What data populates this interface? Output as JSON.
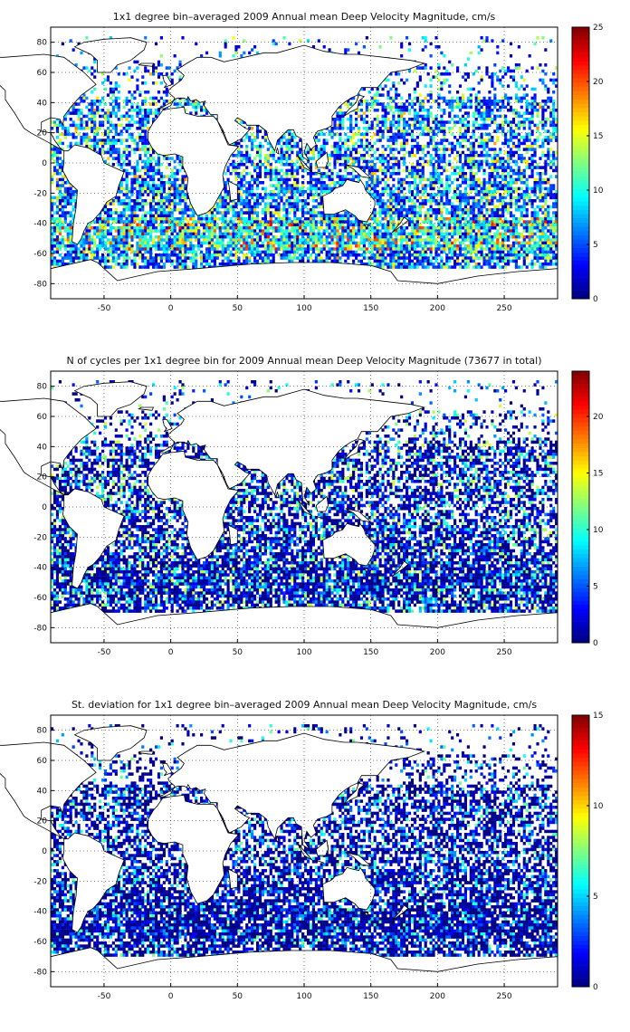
{
  "panels": [
    {
      "title": "1x1 degree bin–averaged 2009 Annual mean Deep Velocity Magnitude, cm/s",
      "colorbar": {
        "min": 0,
        "max": 25,
        "ticks": [
          "0",
          "5",
          "10",
          "15",
          "20",
          "25"
        ]
      },
      "x_ticks": [
        "-50",
        "0",
        "50",
        "100",
        "150",
        "200",
        "250"
      ],
      "y_ticks": [
        "80",
        "60",
        "40",
        "20",
        "0",
        "-20",
        "-40",
        "-60",
        "-80"
      ]
    },
    {
      "title": "N of cycles per 1x1 degree bin for 2009 Annual mean Deep Velocity Magnitude (73677 in total)",
      "colorbar": {
        "min": 0,
        "max": 24,
        "ticks": [
          "0",
          "5",
          "10",
          "15",
          "20"
        ]
      },
      "x_ticks": [
        "-50",
        "0",
        "50",
        "100",
        "150",
        "200",
        "250"
      ],
      "y_ticks": [
        "80",
        "60",
        "40",
        "20",
        "0",
        "-20",
        "-40",
        "-60",
        "-80"
      ]
    },
    {
      "title": "St. deviation for 1x1 degree bin–averaged 2009 Annual mean Deep Velocity Magnitude, cm/s",
      "colorbar": {
        "min": 0,
        "max": 15,
        "ticks": [
          "0",
          "5",
          "10",
          "15"
        ]
      },
      "x_ticks": [
        "-50",
        "0",
        "50",
        "100",
        "150",
        "200",
        "250"
      ],
      "y_ticks": [
        "80",
        "60",
        "40",
        "20",
        "0",
        "-20",
        "-40",
        "-60",
        "-80"
      ]
    }
  ],
  "map": {
    "lon_range": [
      -90,
      290
    ],
    "lat_range": [
      -90,
      90
    ],
    "grid": "dotted",
    "colormap": "jet"
  }
}
